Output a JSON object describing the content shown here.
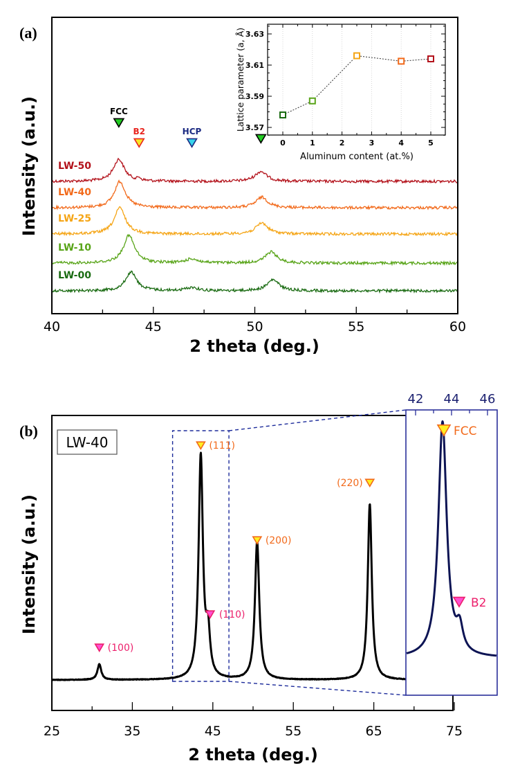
{
  "chart_data": [
    {
      "panel_label": "(a)",
      "type": "line",
      "xlabel": "2 theta (deg.)",
      "ylabel": "Intensity (a.u.)",
      "xlim": [
        40,
        60
      ],
      "xticks": [
        "40",
        "45",
        "50",
        "55",
        "60"
      ],
      "grid": false,
      "series": [
        {
          "name": "LW-50",
          "color": "#b3121b",
          "fcc_peaks": [
            43.3,
            50.3
          ],
          "fcc_heights": [
            1.0,
            0.45
          ],
          "b2_peak": 44.3,
          "hcp_peak": null
        },
        {
          "name": "LW-40",
          "color": "#f26a1b",
          "fcc_peaks": [
            43.35,
            50.35
          ],
          "fcc_heights": [
            1.0,
            0.4
          ],
          "b2_peak": null,
          "hcp_peak": null
        },
        {
          "name": "LW-25",
          "color": "#f5a516",
          "fcc_peaks": [
            43.35,
            50.35
          ],
          "fcc_heights": [
            0.95,
            0.4
          ],
          "b2_peak": null,
          "hcp_peak": null
        },
        {
          "name": "LW-10",
          "color": "#58a418",
          "fcc_peaks": [
            43.8,
            50.8
          ],
          "fcc_heights": [
            1.0,
            0.4
          ],
          "b2_peak": null,
          "hcp_peak": 46.9
        },
        {
          "name": "LW-00",
          "color": "#1a6b12",
          "fcc_peaks": [
            43.9,
            50.9
          ],
          "fcc_heights": [
            0.85,
            0.5
          ],
          "b2_peak": null,
          "hcp_peak": 46.9
        }
      ],
      "annotations": [
        {
          "text": "FCC",
          "x": 43.3,
          "marker": "down-triangle",
          "fill": "#22cc22",
          "text_color": "#000000"
        },
        {
          "text": "B2",
          "x": 44.3,
          "marker": "down-triangle",
          "fill": "#f7e626",
          "stroke": "#e8231d",
          "text_color": "#e8231d"
        },
        {
          "text": "HCP",
          "x": 46.9,
          "marker": "down-triangle",
          "fill": "#37d4ec",
          "stroke": "#1b2a82",
          "text_color": "#1b2a82"
        },
        {
          "text": "",
          "x": 50.3,
          "marker": "down-triangle",
          "fill": "#22cc22",
          "text_color": "#000000"
        }
      ],
      "inset": {
        "type": "scatter",
        "xlabel": "Aluminum content (at.%)",
        "ylabel": "Lattice parameter (a, Å)",
        "xlim": [
          -0.5,
          5.5
        ],
        "ylim": [
          3.565,
          3.635
        ],
        "xticks": [
          "0",
          "1",
          "2",
          "3",
          "4",
          "5"
        ],
        "yticks": [
          "3.57",
          "3.59",
          "3.61",
          "3.63"
        ],
        "grid": "vertical-dotted",
        "points": [
          {
            "x": 0,
            "y": 3.578,
            "color": "#1a6b12"
          },
          {
            "x": 1,
            "y": 3.587,
            "color": "#58a418"
          },
          {
            "x": 2.5,
            "y": 3.616,
            "color": "#f5a516"
          },
          {
            "x": 4,
            "y": 3.6125,
            "color": "#f26a1b"
          },
          {
            "x": 5,
            "y": 3.614,
            "color": "#b3121b"
          }
        ]
      }
    },
    {
      "panel_label": "(b)",
      "type": "line",
      "sample_label": "LW-40",
      "xlabel": "2 theta (deg.)",
      "ylabel": "Intensity (a.u.)",
      "xlim": [
        25,
        75
      ],
      "xticks": [
        "25",
        "35",
        "45",
        "55",
        "65",
        "75"
      ],
      "grid": false,
      "series": [
        {
          "name": "LW-40",
          "color": "#000000",
          "peaks": [
            {
              "x": 30.9,
              "height": 0.07,
              "width": 0.28
            },
            {
              "x": 43.5,
              "height": 1.0,
              "width": 0.32
            },
            {
              "x": 44.4,
              "height": 0.19,
              "width": 0.3
            },
            {
              "x": 50.5,
              "height": 0.62,
              "width": 0.32
            },
            {
              "x": 64.5,
              "height": 0.79,
              "width": 0.3
            }
          ]
        }
      ],
      "annotations": [
        {
          "text": "(100)",
          "x": 30.9,
          "phase": "B2",
          "color": "#ec1f6b"
        },
        {
          "text": "(111)",
          "x": 43.5,
          "phase": "FCC",
          "color": "#f26a1b"
        },
        {
          "text": "(110)",
          "x": 44.4,
          "phase": "B2",
          "color": "#ec1f6b"
        },
        {
          "text": "(200)",
          "x": 50.5,
          "phase": "FCC",
          "color": "#f26a1b"
        },
        {
          "text": "(220)",
          "x": 64.5,
          "phase": "FCC",
          "color": "#f26a1b"
        }
      ],
      "zoom_region": [
        40,
        47
      ],
      "inset": {
        "type": "line",
        "xlim": [
          41.5,
          46.5
        ],
        "xticks": [
          "42",
          "44",
          "46"
        ],
        "line_color": "#0d1454",
        "frame_color": "#2a2f9a",
        "annotations": [
          {
            "text": "FCC",
            "x": 43.5,
            "color": "#f26a1b"
          },
          {
            "text": "B2",
            "x": 44.4,
            "color": "#ec1f6b"
          }
        ]
      }
    }
  ]
}
